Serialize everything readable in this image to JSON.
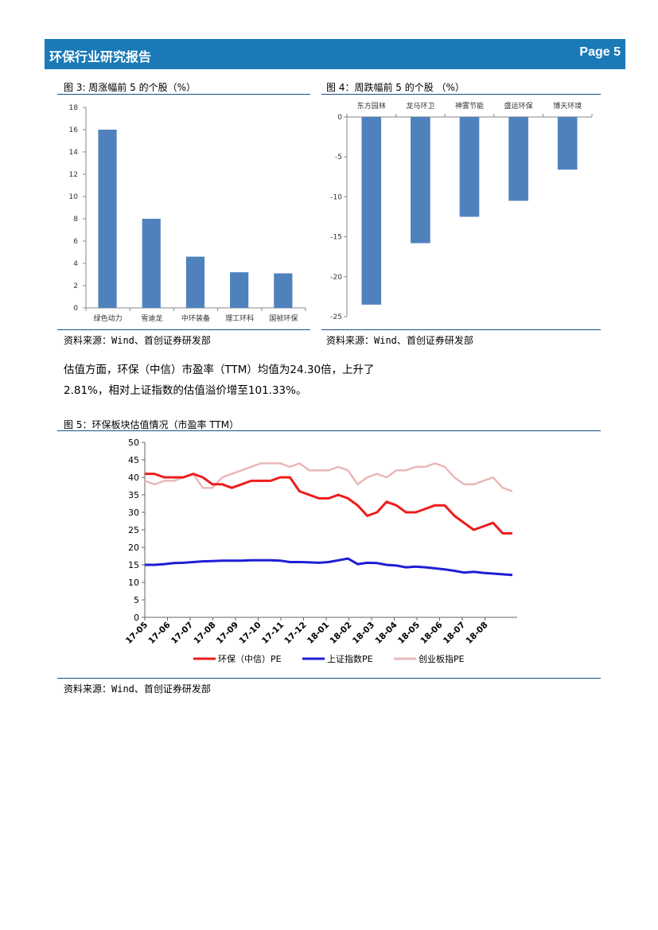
{
  "header": {
    "title": "环保行业研究报告",
    "page": "Page 5"
  },
  "fig3": {
    "caption": "图 3:  周涨幅前 5 的个股（%）",
    "source": "资料来源：Wind、首创证券研发部",
    "chart_data": {
      "type": "bar",
      "categories": [
        "绿色动力",
        "雪迪龙",
        "中环装备",
        "理工环科",
        "国祯环保"
      ],
      "values": [
        16.0,
        8.0,
        4.6,
        3.2,
        3.1
      ],
      "ylim": [
        0,
        18
      ],
      "yticks": [
        0,
        2,
        4,
        6,
        8,
        10,
        12,
        14,
        16,
        18
      ],
      "color": "#4f81bd"
    }
  },
  "fig4": {
    "caption": "图 4：周跌幅前 5 的个股  （%）",
    "source": "资料来源：Wind、首创证券研发部",
    "chart_data": {
      "type": "bar",
      "categories": [
        "东方园林",
        "龙马环卫",
        "神雾节能",
        "盛运环保",
        "博天环境"
      ],
      "values": [
        -23.5,
        -15.8,
        -12.5,
        -10.5,
        -6.6
      ],
      "ylim": [
        -25,
        0
      ],
      "yticks": [
        0,
        -5,
        -10,
        -15,
        -20,
        -25
      ],
      "color": "#4f81bd"
    }
  },
  "paragraph": {
    "line1": "估值方面，环保（中信）市盈率（TTM）均值为24.30倍，上升了",
    "line2": "2.81%，相对上证指数的估值溢价增至101.33%。"
  },
  "fig5": {
    "caption": "图 5：环保板块估值情况（市盈率 TTM）",
    "source": "资料来源：Wind、首创证券研发部",
    "chart_data": {
      "type": "line",
      "ylim": [
        0,
        50
      ],
      "yticks": [
        0,
        5,
        10,
        15,
        20,
        25,
        30,
        35,
        40,
        45,
        50
      ],
      "xticks": [
        "17-05",
        "17-06",
        "17-07",
        "17-08",
        "17-09",
        "17-10",
        "17-11",
        "17-12",
        "18-01",
        "18-02",
        "18-03",
        "18-04",
        "18-05",
        "18-06",
        "18-07",
        "18-08"
      ],
      "series": [
        {
          "name": "环保（中信）PE",
          "color": "#ee1c1c",
          "values": [
            41,
            41,
            40,
            40,
            40,
            41,
            40,
            38,
            38,
            37,
            38,
            39,
            39,
            39,
            40,
            40,
            36,
            35,
            34,
            34,
            35,
            34,
            32,
            29,
            30,
            33,
            32,
            30,
            30,
            31,
            32,
            32,
            29,
            27,
            25,
            26,
            27,
            24,
            24
          ]
        },
        {
          "name": "上证指数PE",
          "color": "#1d1ed6",
          "values": [
            15,
            15,
            15.2,
            15.5,
            15.6,
            15.8,
            16,
            16.1,
            16.2,
            16.2,
            16.2,
            16.3,
            16.3,
            16.3,
            16.2,
            15.8,
            15.8,
            15.7,
            15.6,
            15.8,
            16.3,
            16.8,
            15.2,
            15.6,
            15.5,
            15,
            14.8,
            14.3,
            14.5,
            14.3,
            14,
            13.7,
            13.3,
            12.8,
            13,
            12.7,
            12.5,
            12.3,
            12.1
          ]
        },
        {
          "name": "创业板指PE",
          "color": "#eab8b8",
          "values": [
            39,
            38,
            39,
            39,
            40,
            41,
            37,
            37,
            40,
            41,
            42,
            43,
            44,
            44,
            44,
            43,
            44,
            42,
            42,
            42,
            43,
            42,
            38,
            40,
            41,
            40,
            42,
            42,
            43,
            43,
            44,
            43,
            40,
            38,
            38,
            39,
            40,
            37,
            36
          ]
        }
      ]
    }
  }
}
